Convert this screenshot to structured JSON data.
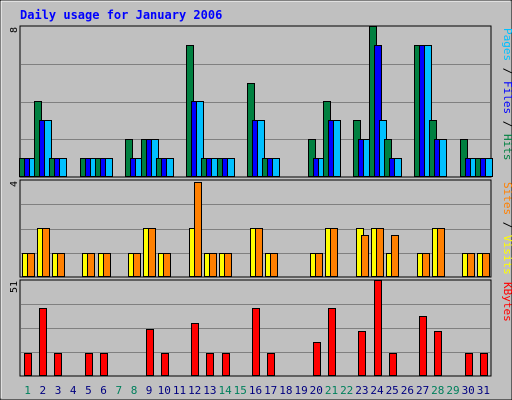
{
  "chart_data": {
    "type": "bar",
    "title": "Daily usage for January 2006",
    "categories": [
      "1",
      "2",
      "3",
      "4",
      "5",
      "6",
      "7",
      "8",
      "9",
      "10",
      "11",
      "12",
      "13",
      "14",
      "15",
      "16",
      "17",
      "18",
      "19",
      "20",
      "21",
      "22",
      "23",
      "24",
      "25",
      "26",
      "27",
      "28",
      "29",
      "30",
      "31"
    ],
    "weekend_days": [
      "1",
      "7",
      "8",
      "14",
      "15",
      "21",
      "22",
      "28",
      "29"
    ],
    "panels": [
      {
        "name": "top",
        "ytick_label": "8",
        "ylim": [
          0,
          8
        ],
        "label_parts": [
          {
            "text": "Pages",
            "color": "#00c0ff"
          },
          {
            "text": " / ",
            "color": "#000000"
          },
          {
            "text": "Files",
            "color": "#0000ff"
          },
          {
            "text": " / ",
            "color": "#000000"
          },
          {
            "text": "Hits",
            "color": "#008040"
          }
        ],
        "series": [
          {
            "name": "Hits",
            "color": "#008040",
            "values": [
              1,
              4,
              1,
              0,
              1,
              1,
              0,
              2,
              2,
              1,
              0,
              7,
              1,
              1,
              0,
              5,
              1,
              0,
              0,
              2,
              4,
              0,
              3,
              8,
              2,
              0,
              7,
              3,
              0,
              2,
              1
            ]
          },
          {
            "name": "Files",
            "color": "#0000ff",
            "values": [
              1,
              3,
              1,
              0,
              1,
              1,
              0,
              1,
              2,
              1,
              0,
              4,
              1,
              1,
              0,
              3,
              1,
              0,
              0,
              1,
              3,
              0,
              2,
              7,
              1,
              0,
              7,
              2,
              0,
              1,
              1
            ]
          },
          {
            "name": "Pages",
            "color": "#00c0ff",
            "values": [
              1,
              3,
              1,
              0,
              1,
              1,
              0,
              1,
              2,
              1,
              0,
              4,
              1,
              1,
              0,
              3,
              1,
              0,
              0,
              1,
              3,
              0,
              2,
              3,
              1,
              0,
              7,
              2,
              0,
              1,
              1
            ]
          }
        ]
      },
      {
        "name": "middle",
        "ytick_label": "4",
        "ylim": [
          0,
          4
        ],
        "label_parts": [
          {
            "text": "Sites",
            "color": "#ff8000"
          },
          {
            "text": " / ",
            "color": "#000000"
          },
          {
            "text": "Visits",
            "color": "#ffff00"
          }
        ],
        "series": [
          {
            "name": "Visits",
            "color": "#ffff00",
            "values": [
              1,
              2,
              1,
              0,
              1,
              1,
              0,
              1,
              2,
              1,
              0,
              2,
              1,
              1,
              0,
              2,
              1,
              0,
              0,
              1,
              2,
              0,
              2,
              2,
              1,
              0,
              1,
              2,
              0,
              1,
              1
            ]
          },
          {
            "name": "Sites",
            "color": "#ff8000",
            "values": [
              1,
              2,
              1,
              0,
              1,
              1,
              0,
              1,
              2,
              1,
              0,
              3.9,
              1,
              1,
              0,
              2,
              1,
              0,
              0,
              1,
              2,
              0,
              1.75,
              2,
              1.75,
              0,
              1,
              2,
              0,
              1,
              1
            ]
          }
        ]
      },
      {
        "name": "bottom",
        "ytick_label": "51",
        "ylim": [
          0,
          51
        ],
        "label_parts": [
          {
            "text": "KBytes",
            "color": "#ff0000"
          }
        ],
        "series": [
          {
            "name": "KBytes",
            "color": "#ff0000",
            "values": [
              12,
              36,
              12,
              0,
              12,
              12,
              0,
              0.5,
              25,
              12,
              0,
              28,
              12,
              12,
              0,
              36,
              12,
              0,
              0,
              18,
              36,
              0,
              24,
              51,
              12,
              0,
              32,
              24,
              0,
              12,
              12
            ]
          }
        ]
      }
    ],
    "colors": {
      "background": "#ffffff",
      "frame": "#c0c0c0",
      "plot": "#c0c0c0",
      "gridline": "#808080",
      "title": "#0000ff",
      "weekday_tick": "#000080",
      "weekend_tick": "#00805c"
    }
  }
}
